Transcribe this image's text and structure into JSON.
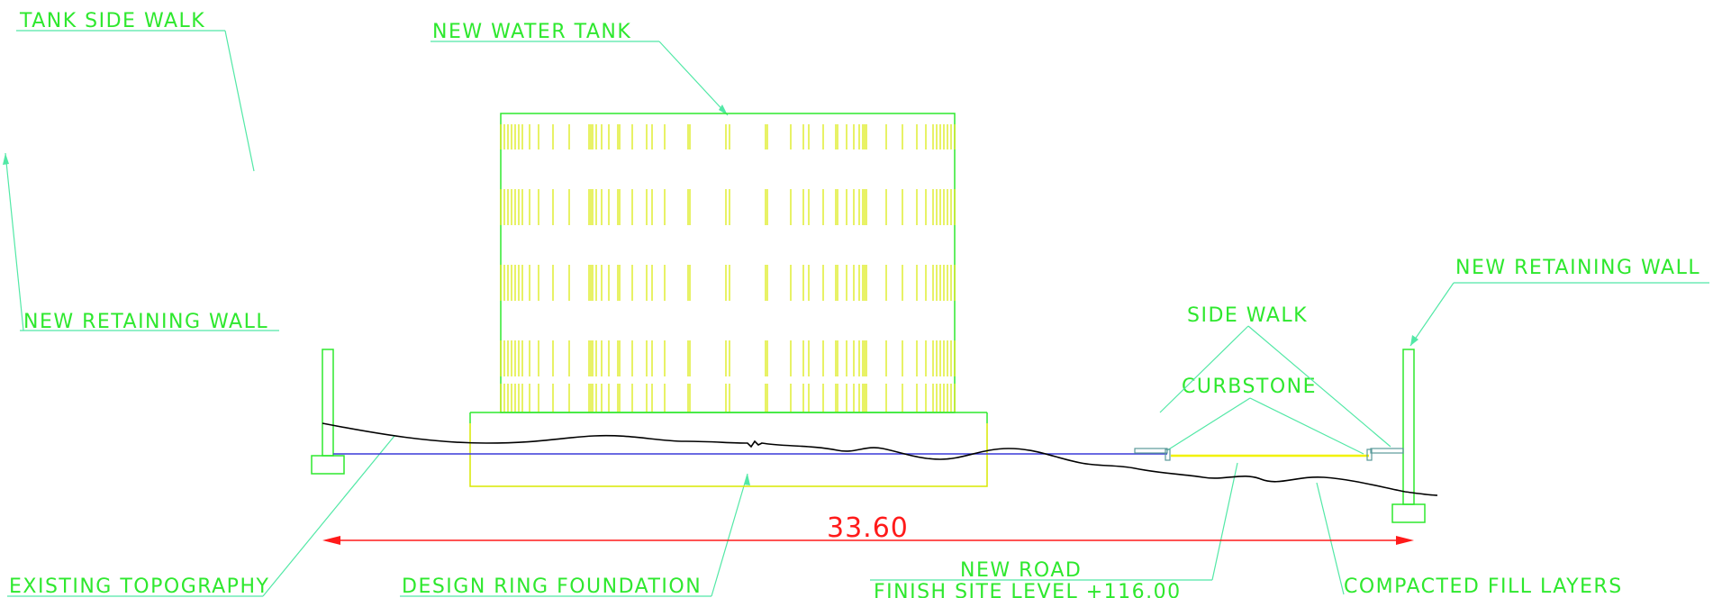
{
  "labels": {
    "tank_side_walk": "TANK SIDE WALK",
    "new_water_tank": "NEW WATER TANK",
    "new_retaining_wall_left": "NEW RETAINING WALL",
    "new_retaining_wall_right": "NEW RETAINING WALL",
    "side_walk": "SIDE WALK",
    "curbstone": "CURBSTONE",
    "existing_topography": "EXISTING TOPOGRAPHY",
    "design_ring_foundation": "DESIGN RING FOUNDATION",
    "new_road": "NEW ROAD",
    "finish_site_level": "FINISH SITE LEVEL +116.00",
    "compacted_fill_layers": "COMPACTED FILL LAYERS"
  },
  "dimension": {
    "value": "33.60"
  },
  "colors": {
    "label_text": "#2ee82e",
    "leader": "#52e8a6",
    "tank_outline": "#2ee82e",
    "tank_hatch": "#d8e800",
    "dimension": "#ff1a1a",
    "base_line": "#3a3ad8",
    "terrain": "#000000",
    "road": "#f2f200"
  }
}
